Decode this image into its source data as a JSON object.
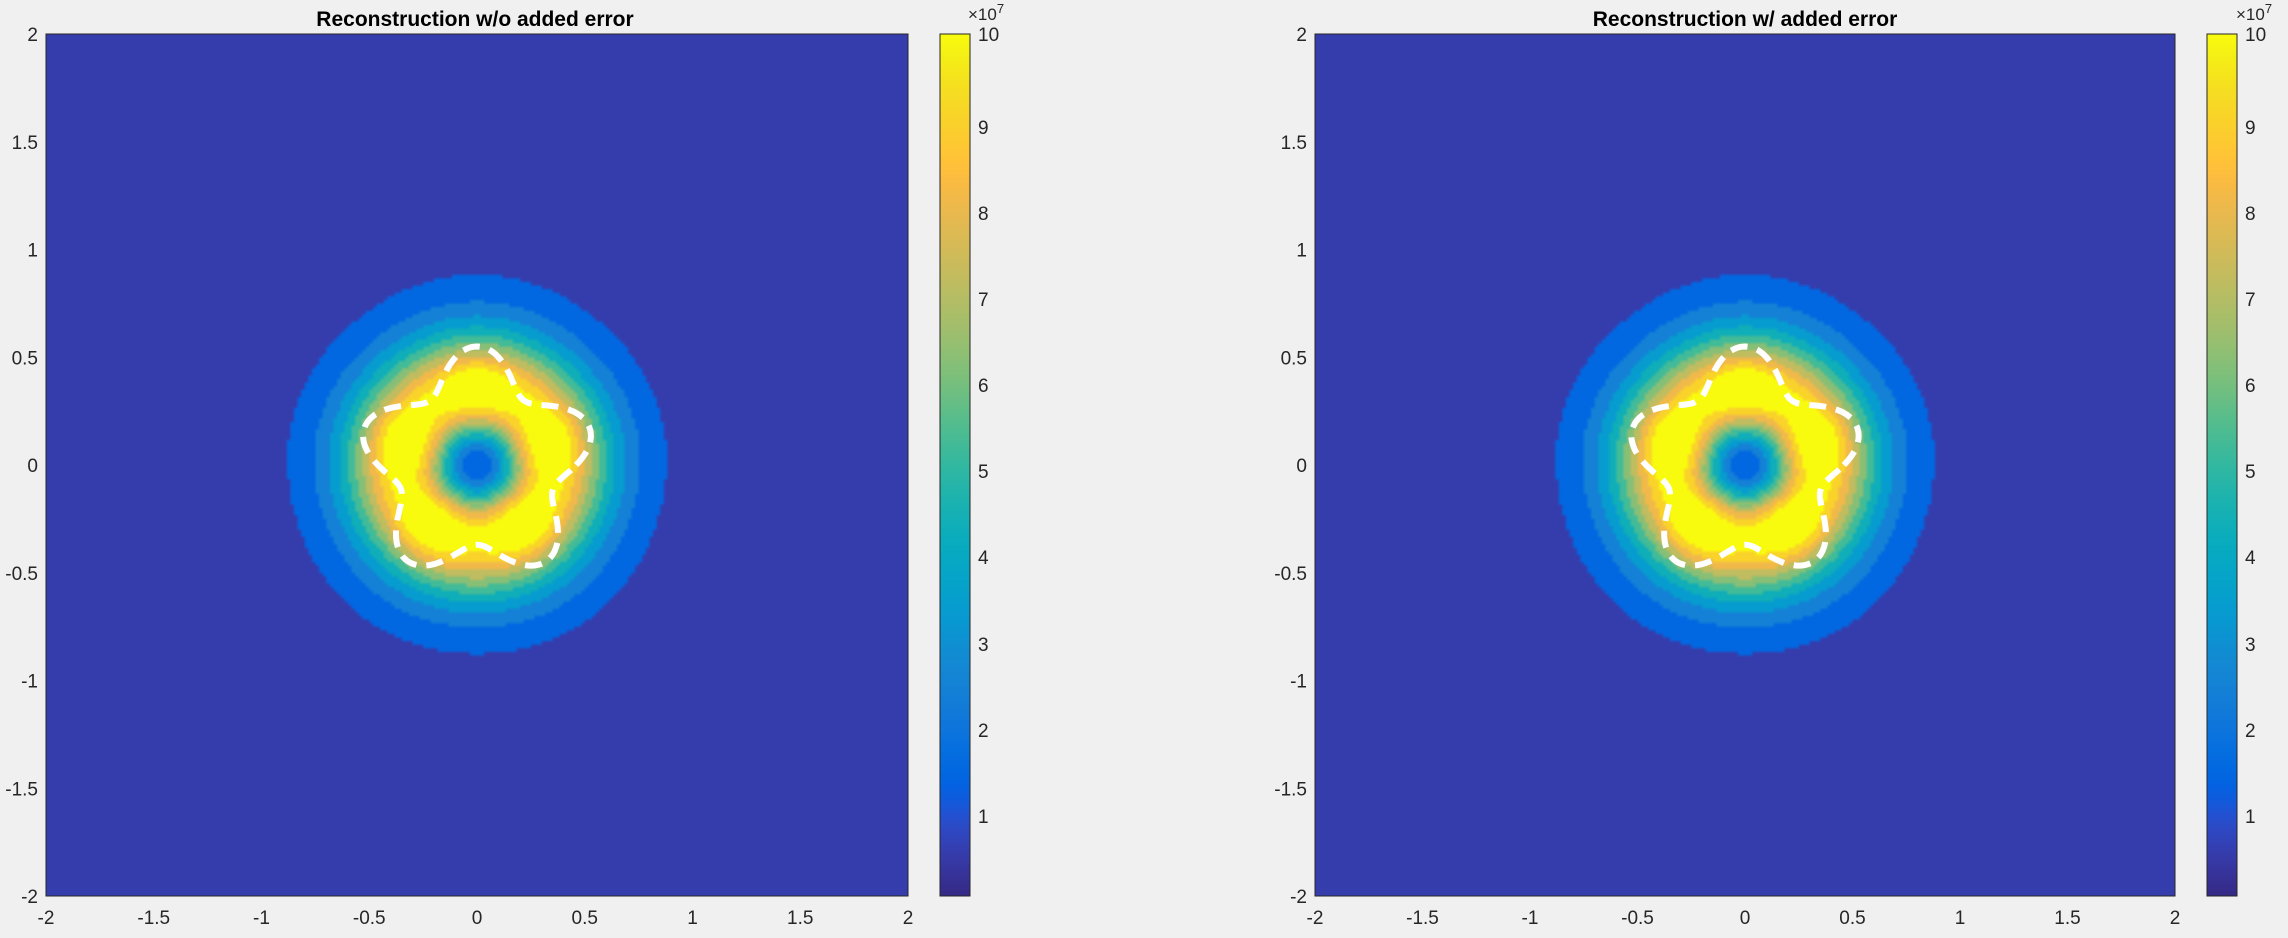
{
  "figure": {
    "background": "#f0f0f0"
  },
  "chart_data": [
    {
      "type": "heatmap",
      "subtype": "filled-contour",
      "title": "Reconstruction w/o added error",
      "xlabel": "",
      "ylabel": "",
      "xlim": [
        -2,
        2
      ],
      "ylim": [
        -2,
        2
      ],
      "xticks": [
        "-2",
        "-1.5",
        "-1",
        "-0.5",
        "0",
        "0.5",
        "1",
        "1.5",
        "2"
      ],
      "yticks": [
        "2",
        "1.5",
        "1",
        "0.5",
        "0",
        "-0.5",
        "-1",
        "-1.5",
        "-2"
      ],
      "colorbar": {
        "clim": [
          0,
          10
        ],
        "ticks": [
          "1",
          "2",
          "3",
          "4",
          "5",
          "6",
          "7",
          "8",
          "9",
          "10"
        ],
        "exponent_label": "×10",
        "exponent_power": "7",
        "colormap": "parula"
      },
      "field": {
        "symmetry": "5-fold",
        "peak_value": 10,
        "center_value": 2.5,
        "outer_value": 0.5,
        "peak_radius": 0.35,
        "bumps_at_deg": [
          18,
          90,
          162,
          234,
          306
        ]
      },
      "overlay": {
        "style": "white dashed boundary",
        "base_radius": 0.46,
        "amplitude": 0.09,
        "lobes": 5
      }
    },
    {
      "type": "heatmap",
      "subtype": "filled-contour",
      "title": "Reconstruction w/ added error",
      "xlabel": "",
      "ylabel": "",
      "xlim": [
        -2,
        2
      ],
      "ylim": [
        -2,
        2
      ],
      "xticks": [
        "-2",
        "-1.5",
        "-1",
        "-0.5",
        "0",
        "0.5",
        "1",
        "1.5",
        "2"
      ],
      "yticks": [
        "2",
        "1.5",
        "1",
        "0.5",
        "0",
        "-0.5",
        "-1",
        "-1.5",
        "-2"
      ],
      "colorbar": {
        "clim": [
          0,
          10
        ],
        "ticks": [
          "1",
          "2",
          "3",
          "4",
          "5",
          "6",
          "7",
          "8",
          "9",
          "10"
        ],
        "exponent_label": "×10",
        "exponent_power": "7",
        "colormap": "parula"
      },
      "field": {
        "symmetry": "5-fold",
        "peak_value": 10,
        "center_value": 2.5,
        "outer_value": 0.5,
        "peak_radius": 0.35,
        "bumps_at_deg": [
          18,
          90,
          162,
          234,
          306
        ]
      },
      "overlay": {
        "style": "white dashed boundary",
        "base_radius": 0.46,
        "amplitude": 0.09,
        "lobes": 5
      }
    }
  ]
}
